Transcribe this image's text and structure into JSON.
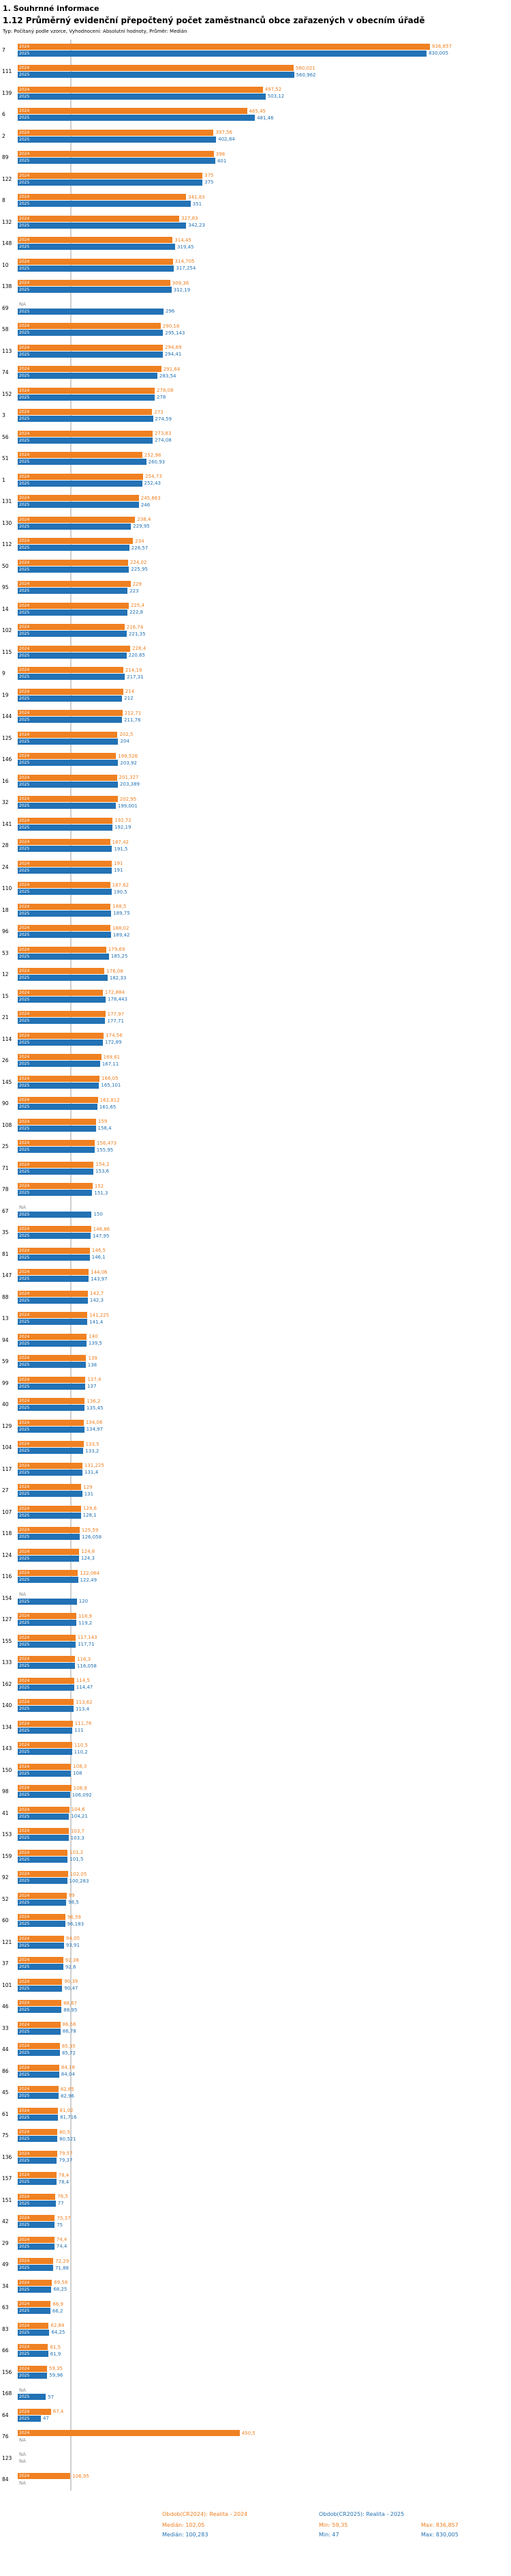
{
  "header": {
    "section_title": "1. Souhrnné informace",
    "title": "1.12 Průměrný evidenční přepočtený počet zaměstnanců obce zařazených v obecním úřadě",
    "subtitle": "Typ: Počítaný podle vzorce, Vyhodnocení: Absolutní hodnoty, Průměr: Medián"
  },
  "chart_data": {
    "type": "bar",
    "orientation": "horizontal",
    "title": "1.12 Průměrný evidenční přepočtený počet zaměstnanců obce zařazených v obecním úřadě",
    "value_axis_max": 850,
    "grid": "median-lines-only",
    "legend_position": "bottom",
    "median_lines": [
      {
        "series": "2024",
        "value": 102.05
      },
      {
        "series": "2025",
        "value": 100.283
      }
    ],
    "series": [
      {
        "key": "s2024",
        "year_label": "2024",
        "name": "Obdob(CR2024): Realita - 2024",
        "color": "#f08122",
        "median": "Medián: 102,05",
        "min": "Min: 59,35",
        "max": "Max: 836,857"
      },
      {
        "key": "s2025",
        "year_label": "2025",
        "name": "Obdob(CR2025): Realita - 2025",
        "color": "#2272b5",
        "median": "Medián: 100,283",
        "min": "Min: 47",
        "max": "Max: 830,005"
      }
    ],
    "rows": [
      {
        "id": "7",
        "v2024": 836.857,
        "label2024": "836,857",
        "v2025": 830.005,
        "label2025": "830,005"
      },
      {
        "id": "111",
        "v2024": 560.021,
        "label2024": "560,021",
        "v2025": 560.962,
        "label2025": "560,962"
      },
      {
        "id": "139",
        "v2024": 497.52,
        "label2024": "497,52",
        "v2025": 503.12,
        "label2025": "503,12"
      },
      {
        "id": "6",
        "v2024": 465.45,
        "label2024": "465,45",
        "v2025": 481.46,
        "label2025": "481,46"
      },
      {
        "id": "2",
        "v2024": 397.56,
        "label2024": "397,56",
        "v2025": 402.84,
        "label2025": "402,84"
      },
      {
        "id": "89",
        "v2024": 398,
        "label2024": "398",
        "v2025": 401,
        "label2025": "401"
      },
      {
        "id": "122",
        "v2024": 375,
        "label2024": "375",
        "v2025": 375,
        "label2025": "375"
      },
      {
        "id": "8",
        "v2024": 341.83,
        "label2024": "341,83",
        "v2025": 351,
        "label2025": "351"
      },
      {
        "id": "132",
        "v2024": 327.83,
        "label2024": "327,83",
        "v2025": 342.23,
        "label2025": "342,23"
      },
      {
        "id": "148",
        "v2024": 314.45,
        "label2024": "314,45",
        "v2025": 319.45,
        "label2025": "319,45"
      },
      {
        "id": "10",
        "v2024": 314.705,
        "label2024": "314,705",
        "v2025": 317.254,
        "label2025": "317,254"
      },
      {
        "id": "138",
        "v2024": 309.36,
        "label2024": "309,36",
        "v2025": 312.19,
        "label2025": "312,19"
      },
      {
        "id": "69",
        "v2024": null,
        "label2024": "NA",
        "v2025": 296,
        "label2025": "296"
      },
      {
        "id": "58",
        "v2024": 290.18,
        "label2024": "290,18",
        "v2025": 295.143,
        "label2025": "295,143"
      },
      {
        "id": "113",
        "v2024": 294.69,
        "label2024": "294,69",
        "v2025": 294.41,
        "label2025": "294,41"
      },
      {
        "id": "74",
        "v2024": 291.64,
        "label2024": "291,64",
        "v2025": 283.54,
        "label2025": "283,54"
      },
      {
        "id": "152",
        "v2024": 278.08,
        "label2024": "278,08",
        "v2025": 278,
        "label2025": "278"
      },
      {
        "id": "3",
        "v2024": 273,
        "label2024": "273",
        "v2025": 274.59,
        "label2025": "274,59"
      },
      {
        "id": "56",
        "v2024": 273.83,
        "label2024": "273,83",
        "v2025": 274.08,
        "label2025": "274,08"
      },
      {
        "id": "51",
        "v2024": 252.98,
        "label2024": "252,98",
        "v2025": 260.93,
        "label2025": "260,93"
      },
      {
        "id": "1",
        "v2024": 254.73,
        "label2024": "254,73",
        "v2025": 252.43,
        "label2025": "252,43"
      },
      {
        "id": "131",
        "v2024": 245.863,
        "label2024": "245,863",
        "v2025": 246,
        "label2025": "246"
      },
      {
        "id": "130",
        "v2024": 238.4,
        "label2024": "238,4",
        "v2025": 229.95,
        "label2025": "229,95"
      },
      {
        "id": "112",
        "v2024": 234,
        "label2024": "234",
        "v2025": 226.57,
        "label2025": "226,57"
      },
      {
        "id": "50",
        "v2024": 224.02,
        "label2024": "224,02",
        "v2025": 225.95,
        "label2025": "225,95"
      },
      {
        "id": "95",
        "v2024": 229,
        "label2024": "229",
        "v2025": 223,
        "label2025": "223"
      },
      {
        "id": "14",
        "v2024": 225.4,
        "label2024": "225,4",
        "v2025": 222.8,
        "label2025": "222,8"
      },
      {
        "id": "102",
        "v2024": 216.74,
        "label2024": "216,74",
        "v2025": 221.35,
        "label2025": "221,35"
      },
      {
        "id": "115",
        "v2024": 228.4,
        "label2024": "228,4",
        "v2025": 220.65,
        "label2025": "220,65"
      },
      {
        "id": "9",
        "v2024": 214.19,
        "label2024": "214,19",
        "v2025": 217.31,
        "label2025": "217,31"
      },
      {
        "id": "19",
        "v2024": 214,
        "label2024": "214",
        "v2025": 212,
        "label2025": "212"
      },
      {
        "id": "144",
        "v2024": 212.71,
        "label2024": "212,71",
        "v2025": 211.76,
        "label2025": "211,76"
      },
      {
        "id": "125",
        "v2024": 202.5,
        "label2024": "202,5",
        "v2025": 204,
        "label2025": "204"
      },
      {
        "id": "146",
        "v2024": 199.526,
        "label2024": "199,526",
        "v2025": 203.92,
        "label2025": "203,92"
      },
      {
        "id": "16",
        "v2024": 201.327,
        "label2024": "201,327",
        "v2025": 203.389,
        "label2025": "203,389"
      },
      {
        "id": "32",
        "v2024": 202.95,
        "label2024": "202,95",
        "v2025": 199.001,
        "label2025": "199,001"
      },
      {
        "id": "141",
        "v2024": 192.72,
        "label2024": "192,72",
        "v2025": 192.19,
        "label2025": "192,19"
      },
      {
        "id": "28",
        "v2024": 187.42,
        "label2024": "187,42",
        "v2025": 191.5,
        "label2025": "191,5"
      },
      {
        "id": "24",
        "v2024": 191,
        "label2024": "191",
        "v2025": 191,
        "label2025": "191"
      },
      {
        "id": "110",
        "v2024": 187.62,
        "label2024": "187,62",
        "v2025": 190.5,
        "label2025": "190,5"
      },
      {
        "id": "18",
        "v2024": 188.5,
        "label2024": "188,5",
        "v2025": 189.75,
        "label2025": "189,75"
      },
      {
        "id": "96",
        "v2024": 188.02,
        "label2024": "188,02",
        "v2025": 189.42,
        "label2025": "189,42"
      },
      {
        "id": "53",
        "v2024": 179.69,
        "label2024": "179,69",
        "v2025": 185.25,
        "label2025": "185,25"
      },
      {
        "id": "12",
        "v2024": 176.08,
        "label2024": "176,08",
        "v2025": 182.33,
        "label2025": "182,33"
      },
      {
        "id": "15",
        "v2024": 172.884,
        "label2024": "172,884",
        "v2025": 178.443,
        "label2025": "178,443"
      },
      {
        "id": "21",
        "v2024": 177.97,
        "label2024": "177,97",
        "v2025": 177.71,
        "label2025": "177,71"
      },
      {
        "id": "114",
        "v2024": 174.56,
        "label2024": "174,56",
        "v2025": 172.89,
        "label2025": "172,89"
      },
      {
        "id": "26",
        "v2024": 169.61,
        "label2024": "169,61",
        "v2025": 167.11,
        "label2025": "167,11"
      },
      {
        "id": "145",
        "v2024": 166.05,
        "label2024": "166,05",
        "v2025": 165.101,
        "label2025": "165,101"
      },
      {
        "id": "90",
        "v2024": 162.812,
        "label2024": "162,812",
        "v2025": 161.65,
        "label2025": "161,65"
      },
      {
        "id": "108",
        "v2024": 159,
        "label2024": "159",
        "v2025": 158.4,
        "label2025": "158,4"
      },
      {
        "id": "25",
        "v2024": 156.473,
        "label2024": "156,473",
        "v2025": 155.95,
        "label2025": "155,95"
      },
      {
        "id": "71",
        "v2024": 154.2,
        "label2024": "154,2",
        "v2025": 153.6,
        "label2025": "153,6"
      },
      {
        "id": "78",
        "v2024": 152,
        "label2024": "152",
        "v2025": 151.3,
        "label2025": "151,3"
      },
      {
        "id": "67",
        "v2024": null,
        "label2024": "NA",
        "v2025": 150,
        "label2025": "150"
      },
      {
        "id": "35",
        "v2024": 148.86,
        "label2024": "148,86",
        "v2025": 147.95,
        "label2025": "147,95"
      },
      {
        "id": "81",
        "v2024": 146.5,
        "label2024": "146,5",
        "v2025": 146.1,
        "label2025": "146,1"
      },
      {
        "id": "147",
        "v2024": 144.06,
        "label2024": "144,06",
        "v2025": 143.97,
        "label2025": "143,97"
      },
      {
        "id": "88",
        "v2024": 142.7,
        "label2024": "142,7",
        "v2025": 142.3,
        "label2025": "142,3"
      },
      {
        "id": "13",
        "v2024": 141.225,
        "label2024": "141,225",
        "v2025": 141.4,
        "label2025": "141,4"
      },
      {
        "id": "94",
        "v2024": 140,
        "label2024": "140",
        "v2025": 139.5,
        "label2025": "139,5"
      },
      {
        "id": "59",
        "v2024": 139,
        "label2024": "139",
        "v2025": 138,
        "label2025": "138"
      },
      {
        "id": "99",
        "v2024": 137.4,
        "label2024": "137,4",
        "v2025": 137,
        "label2025": "137"
      },
      {
        "id": "40",
        "v2024": 136.2,
        "label2024": "136,2",
        "v2025": 135.45,
        "label2025": "135,45"
      },
      {
        "id": "129",
        "v2024": 134.06,
        "label2024": "134,06",
        "v2025": 134.97,
        "label2025": "134,97"
      },
      {
        "id": "104",
        "v2024": 133.5,
        "label2024": "133,5",
        "v2025": 133.2,
        "label2025": "133,2"
      },
      {
        "id": "117",
        "v2024": 131.225,
        "label2024": "131,225",
        "v2025": 131.4,
        "label2025": "131,4"
      },
      {
        "id": "27",
        "v2024": 129,
        "label2024": "129",
        "v2025": 131,
        "label2025": "131"
      },
      {
        "id": "107",
        "v2024": 128.6,
        "label2024": "128,6",
        "v2025": 128.1,
        "label2025": "128,1"
      },
      {
        "id": "118",
        "v2024": 125.59,
        "label2024": "125,59",
        "v2025": 126.058,
        "label2025": "126,058"
      },
      {
        "id": "124",
        "v2024": 124.8,
        "label2024": "124,8",
        "v2025": 124.3,
        "label2025": "124,3"
      },
      {
        "id": "116",
        "v2024": 122.064,
        "label2024": "122,064",
        "v2025": 122.49,
        "label2025": "122,49"
      },
      {
        "id": "154",
        "v2024": null,
        "label2024": "NA",
        "v2025": 120,
        "label2025": "120"
      },
      {
        "id": "127",
        "v2024": 118.9,
        "label2024": "118,9",
        "v2025": 119.2,
        "label2025": "119,2"
      },
      {
        "id": "155",
        "v2024": 117.143,
        "label2024": "117,143",
        "v2025": 117.71,
        "label2025": "117,71"
      },
      {
        "id": "133",
        "v2024": 116.3,
        "label2024": "116,3",
        "v2025": 116.058,
        "label2025": "116,058"
      },
      {
        "id": "162",
        "v2024": 114.5,
        "label2024": "114,5",
        "v2025": 114.47,
        "label2025": "114,47"
      },
      {
        "id": "140",
        "v2024": 113.62,
        "label2024": "113,62",
        "v2025": 113.4,
        "label2025": "113,4"
      },
      {
        "id": "134",
        "v2024": 111.76,
        "label2024": "111,76",
        "v2025": 111,
        "label2025": "111"
      },
      {
        "id": "143",
        "v2024": 110.5,
        "label2024": "110,5",
        "v2025": 110.2,
        "label2025": "110,2"
      },
      {
        "id": "150",
        "v2024": 108.3,
        "label2024": "108,3",
        "v2025": 108,
        "label2025": "108"
      },
      {
        "id": "98",
        "v2024": 108.9,
        "label2024": "108,9",
        "v2025": 106.092,
        "label2025": "106,092"
      },
      {
        "id": "41",
        "v2024": 104.6,
        "label2024": "104,6",
        "v2025": 104.21,
        "label2025": "104,21"
      },
      {
        "id": "153",
        "v2024": 103.7,
        "label2024": "103,7",
        "v2025": 103.3,
        "label2025": "103,3"
      },
      {
        "id": "159",
        "v2024": 101.2,
        "label2024": "101,2",
        "v2025": 101.5,
        "label2025": "101,5"
      },
      {
        "id": "92",
        "v2024": 102.05,
        "label2024": "102,05",
        "v2025": 100.283,
        "label2025": "100,283"
      },
      {
        "id": "52",
        "v2024": 99,
        "label2024": "99",
        "v2025": 98.5,
        "label2025": "98,5"
      },
      {
        "id": "60",
        "v2024": 96.59,
        "label2024": "96,59",
        "v2025": 96.183,
        "label2025": "96,183"
      },
      {
        "id": "121",
        "v2024": 94.05,
        "label2024": "94,05",
        "v2025": 93.91,
        "label2025": "93,91"
      },
      {
        "id": "37",
        "v2024": 92.38,
        "label2024": "92,38",
        "v2025": 92.6,
        "label2025": "92,6"
      },
      {
        "id": "101",
        "v2024": 90.39,
        "label2024": "90,39",
        "v2025": 90.47,
        "label2025": "90,47"
      },
      {
        "id": "46",
        "v2024": 88.67,
        "label2024": "88,67",
        "v2025": 88.95,
        "label2025": "88,95"
      },
      {
        "id": "33",
        "v2024": 86.56,
        "label2024": "86,56",
        "v2025": 86.78,
        "label2025": "86,78"
      },
      {
        "id": "44",
        "v2024": 85.35,
        "label2024": "85,35",
        "v2025": 85.72,
        "label2025": "85,72"
      },
      {
        "id": "86",
        "v2024": 84.18,
        "label2024": "84,18",
        "v2025": 84.04,
        "label2025": "84,04"
      },
      {
        "id": "45",
        "v2024": 82.65,
        "label2024": "82,65",
        "v2025": 82.96,
        "label2025": "82,96"
      },
      {
        "id": "61",
        "v2024": 81.02,
        "label2024": "81,02",
        "v2025": 81.716,
        "label2025": "81,716"
      },
      {
        "id": "75",
        "v2024": 80.5,
        "label2024": "80,5",
        "v2025": 80.521,
        "label2025": "80,521"
      },
      {
        "id": "136",
        "v2024": 79.57,
        "label2024": "79,57",
        "v2025": 79.37,
        "label2025": "79,37"
      },
      {
        "id": "157",
        "v2024": 78.4,
        "label2024": "78,4",
        "v2025": 78.4,
        "label2025": "78,4"
      },
      {
        "id": "151",
        "v2024": 76.5,
        "label2024": "76,5",
        "v2025": 77,
        "label2025": "77"
      },
      {
        "id": "42",
        "v2024": 75.37,
        "label2024": "75,37",
        "v2025": 75,
        "label2025": "75"
      },
      {
        "id": "29",
        "v2024": 74.4,
        "label2024": "74,4",
        "v2025": 74.4,
        "label2025": "74,4"
      },
      {
        "id": "49",
        "v2024": 72.29,
        "label2024": "72,29",
        "v2025": 71.88,
        "label2025": "71,88"
      },
      {
        "id": "34",
        "v2024": 69.58,
        "label2024": "69,58",
        "v2025": 68.25,
        "label2025": "68,25"
      },
      {
        "id": "63",
        "v2024": 66.9,
        "label2024": "66,9",
        "v2025": 66.2,
        "label2025": "66,2"
      },
      {
        "id": "83",
        "v2024": 62.84,
        "label2024": "62,84",
        "v2025": 64.25,
        "label2025": "64,25"
      },
      {
        "id": "66",
        "v2024": 61.5,
        "label2024": "61,5",
        "v2025": 61.9,
        "label2025": "61,9"
      },
      {
        "id": "156",
        "v2024": 59.35,
        "label2024": "59,35",
        "v2025": 59.96,
        "label2025": "59,96"
      },
      {
        "id": "168",
        "v2024": null,
        "label2024": "NA",
        "v2025": 57,
        "label2025": "57"
      },
      {
        "id": "64",
        "v2024": 67.4,
        "label2024": "67,4",
        "v2025": 47,
        "label2025": "47"
      },
      {
        "id": "76",
        "v2024": 450.5,
        "label2024": "450,5",
        "v2025": null,
        "label2025": "NA"
      },
      {
        "id": "123",
        "v2024": null,
        "label2024": "NA",
        "v2025": null,
        "label2025": "NA"
      },
      {
        "id": "84",
        "v2024": 106.95,
        "label2024": "106,95",
        "v2025": null,
        "label2025": "NA"
      }
    ]
  }
}
